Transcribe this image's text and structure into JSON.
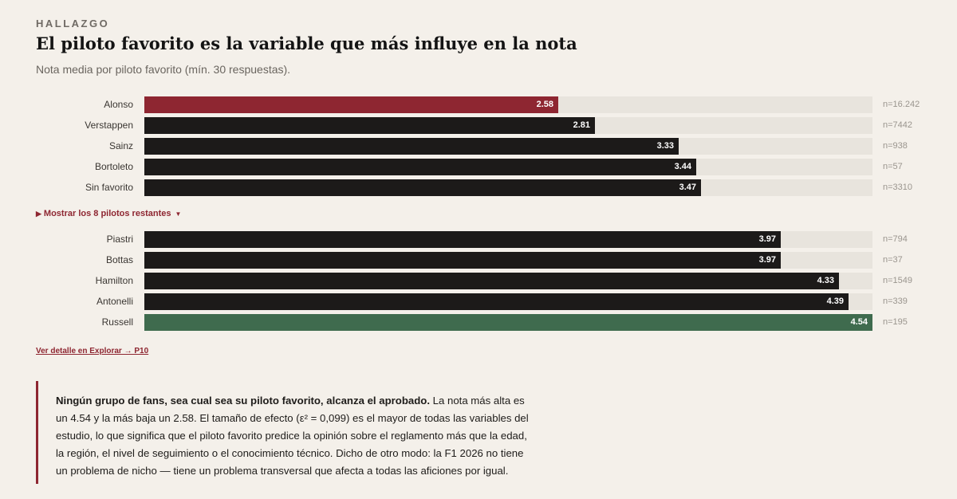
{
  "header": {
    "eyebrow": "HALLAZGO",
    "title": "El piloto favorito es la variable que más influye en la nota",
    "subtitle": "Nota media por piloto favorito (mín. 30 respuestas)."
  },
  "chart_data": {
    "type": "bar",
    "orientation": "horizontal",
    "xlim": [
      0,
      4.54
    ],
    "categories": [
      "Alonso",
      "Verstappen",
      "Sainz",
      "Bortoleto",
      "Sin favorito",
      "Piastri",
      "Bottas",
      "Hamilton",
      "Antonelli",
      "Russell"
    ],
    "values": [
      2.58,
      2.81,
      3.33,
      3.44,
      3.47,
      3.97,
      3.97,
      4.33,
      4.39,
      4.54
    ],
    "value_labels": [
      "2.58",
      "2.81",
      "3.33",
      "3.44",
      "3.47",
      "3.97",
      "3.97",
      "4.33",
      "4.39",
      "4.54"
    ],
    "n_labels": [
      "n=16.242",
      "n=7442",
      "n=938",
      "n=57",
      "n=3310",
      "n=794",
      "n=37",
      "n=1549",
      "n=339",
      "n=195"
    ],
    "highlight": {
      "lowest": "Alonso",
      "highest": "Russell"
    },
    "colors": {
      "default": "#1c1a19",
      "lowest": "#8e2631",
      "highest": "#3f6b4e",
      "track": "#e8e4dd"
    }
  },
  "toggle": {
    "label": "Mostrar los 8 pilotos restantes"
  },
  "detail_link": {
    "label": "Ver detalle en Explorar → P10"
  },
  "callout": {
    "lead": "Ningún grupo de fans, sea cual sea su piloto favorito, alcanza el aprobado.",
    "body": " La nota más alta es un 4.54 y la más baja un 2.58. El tamaño de efecto (ε² = 0,099) es el mayor de todas las variables del estudio, lo que significa que el piloto favorito predice la opinión sobre el reglamento más que la edad, la región, el nivel de seguimiento o el conocimiento técnico. Dicho de otro modo: la F1 2026 no tiene un problema de nicho — tiene un problema transversal que afecta a todas las aficiones por igual."
  },
  "theme": {
    "accent": "#8e2631",
    "background": "#f4f0ea"
  }
}
